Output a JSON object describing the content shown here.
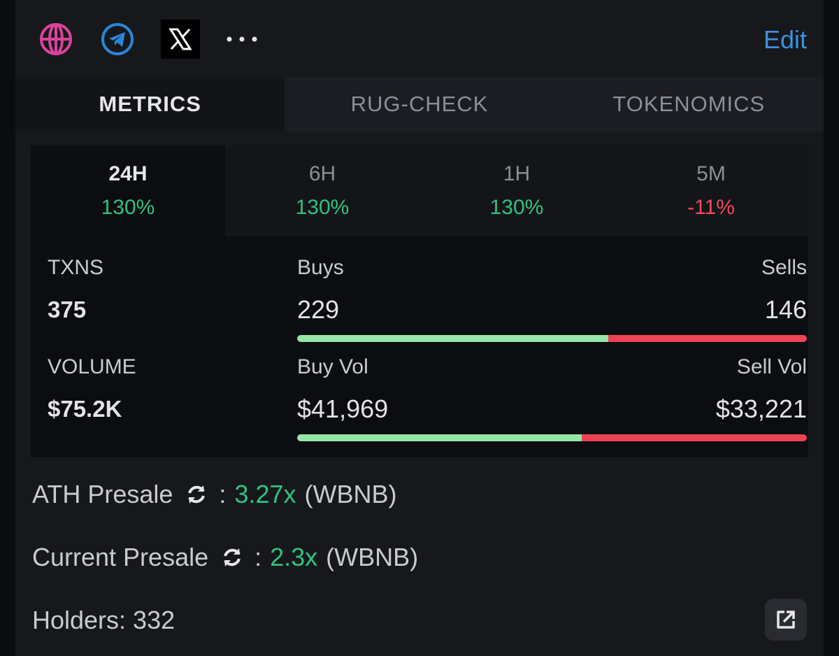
{
  "header": {
    "icons": [
      "globe-icon",
      "telegram-icon",
      "x-icon",
      "more-icon"
    ],
    "edit_label": "Edit"
  },
  "tabs": [
    {
      "label": "METRICS",
      "active": true
    },
    {
      "label": "RUG-CHECK",
      "active": false
    },
    {
      "label": "TOKENOMICS",
      "active": false
    }
  ],
  "periods": [
    {
      "label": "24H",
      "change": "130%",
      "trend": "up",
      "active": true
    },
    {
      "label": "6H",
      "change": "130%",
      "trend": "up",
      "active": false
    },
    {
      "label": "1H",
      "change": "130%",
      "trend": "up",
      "active": false
    },
    {
      "label": "5M",
      "change": "-11%",
      "trend": "down",
      "active": false
    }
  ],
  "txns": {
    "label": "TXNS",
    "value": "375",
    "buys_label": "Buys",
    "buys": "229",
    "sells_label": "Sells",
    "sells": "146",
    "buy_fraction": 0.61
  },
  "volume": {
    "label": "VOLUME",
    "value": "$75.2K",
    "buy_label": "Buy Vol",
    "buy": "$41,969",
    "sell_label": "Sell Vol",
    "sell": "$33,221",
    "buy_fraction": 0.558
  },
  "presale": {
    "ath_label": "ATH Presale",
    "ath_value": "3.27x",
    "ath_unit": "(WBNB)",
    "current_label": "Current Presale",
    "current_value": "2.3x",
    "current_unit": "(WBNB)",
    "separator": ":"
  },
  "holders": {
    "text": "Holders: 332"
  },
  "colors": {
    "positive": "#2ec27e",
    "negative": "#ef4b5a",
    "accent": "#3d8fe0",
    "buy_bar": "#95e6a8",
    "sell_bar": "#ee4357"
  }
}
